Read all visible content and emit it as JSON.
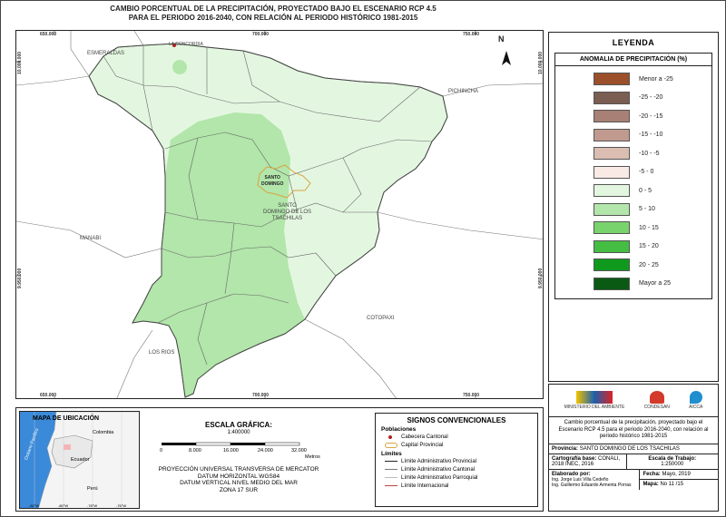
{
  "map": {
    "title_lines": [
      "CAMBIO PORCENTUAL DE LA PRECIPITACIÓN, PROYECTADO BAJO EL ESCENARIO RCP 4.5",
      "PARA EL PERIODO 2016-2040, CON RELACIÓN AL PERIODO HISTÓRICO 1981-2015"
    ],
    "coords_top": [
      "650.000",
      "700.000",
      "750.000"
    ],
    "coords_bottom": [
      "650.000",
      "700.000",
      "750.000"
    ],
    "coords_left": [
      "10.000.000",
      "9.950.000"
    ],
    "coords_right": [
      "10.000.000",
      "9.950.000"
    ],
    "north": "N",
    "places": {
      "esmeraldas": "ESMERALDAS",
      "pichincha": "PICHINCHA",
      "manabi": "MANABI",
      "cotopaxi": "COTOPAXI",
      "los_rios": "LOS RIOS",
      "santo_domingo_city": "SANTO\nDOMINGO",
      "province_label": "SANTO\nDOMINGO DE LOS\nTSACHILAS",
      "la_concordia": "LA CONCORDIA"
    },
    "colors": {
      "zone_0_5": "#e3f7e0",
      "zone_5_10": "#b2e6aa",
      "border": "#666666",
      "capital": "#d9a441",
      "cabecera": "#b22222"
    }
  },
  "legend": {
    "title": "LEYENDA",
    "subtitle": "ANOMALIA DE PRECIPITACIÓN (%)",
    "items": [
      {
        "label": "Menor a -25",
        "color": "#9c4f2b"
      },
      {
        "label": "-25 - -20",
        "color": "#7a5e52"
      },
      {
        "label": "-20 - -15",
        "color": "#a88075"
      },
      {
        "label": "-15 - -10",
        "color": "#c09a8f"
      },
      {
        "label": "-10 - -5",
        "color": "#dbbdb2"
      },
      {
        "label": "-5 - 0",
        "color": "#faeae6"
      },
      {
        "label": "0 - 5",
        "color": "#e3f7e0"
      },
      {
        "label": "5 - 10",
        "color": "#b2e6aa"
      },
      {
        "label": "10 - 15",
        "color": "#79d36d"
      },
      {
        "label": "15 - 20",
        "color": "#45bd43"
      },
      {
        "label": "20 - 25",
        "color": "#0f9a1e"
      },
      {
        "label": "Mayor a 25",
        "color": "#0b5a14"
      }
    ]
  },
  "info": {
    "logos": [
      "MINISTERIO DEL AMBIENTE",
      "CONDESAN",
      "AICCA"
    ],
    "description": "Cambio porcentual de la precipitación, proyectado bajo el Escenario RCP 4.5 para el periodo 2016-2040, con relación al periodo histórico 1981-2015",
    "provincia_label": "Provincia:",
    "provincia_value": "SANTO DOMINGO DE LOS TSACHILAS",
    "cartografia_label": "Cartografía base:",
    "cartografia_value": "CONALI, 2018 INEC, 2016",
    "escala_label": "Escala de Trabajo:",
    "escala_value": "1:250000",
    "elaborado_label": "Elaborado por:",
    "elaborado_value": "Ing. Jorge Luis Villa Cedeño\nIng. Guillermo Eduardo Armenta Porras",
    "fecha_label": "Fecha:",
    "fecha_value": "Mayo, 2019",
    "mapa_label": "Mapa:",
    "mapa_value": "No 11 /15"
  },
  "location_map": {
    "title": "MAPA DE UBICACIÓN",
    "lon_labels": [
      "-82°W",
      "-80°W",
      "-78°W",
      "-76°W"
    ],
    "colombia": "Colombia",
    "ecuador": "Ecuador",
    "peru": "Perú",
    "ocean": "Océano Pacífico"
  },
  "scale": {
    "title": "ESCALA GRÁFICA:",
    "ratio": "1:400000",
    "ticks": [
      "0",
      "8.000",
      "16.000",
      "24.000",
      "32.000"
    ],
    "unit": "Metros",
    "projection": [
      "PROYECCIÓN UNIVERSAL TRANSVERSA DE MERCATOR",
      "DATUM HORIZONTAL WGS84",
      "DATUM VERTICAL NIVEL MEDIO DEL MAR",
      "ZONA 17 SUR"
    ]
  },
  "signs": {
    "title": "SIGNOS CONVENCIONALES",
    "poblaciones": "Poblaciones",
    "cabecera": "Cabecera Cantonal",
    "capital": "Capital Provincial",
    "limites": "Límites",
    "lim_provincial": "Límite Administrativo Provincial",
    "lim_cantonal": "Límite Administrativo Cantonal",
    "lim_parroquial": "Límite Administrativo Parroquial",
    "lim_internacional": "Límite Internacional"
  }
}
